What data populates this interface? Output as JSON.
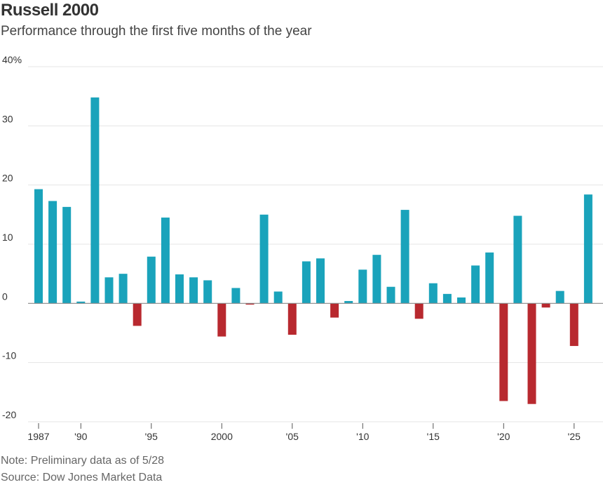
{
  "chart_data": {
    "type": "bar",
    "title": "Russell 2000",
    "subtitle": "Performance through the first five months of the year",
    "note": "Note: Preliminary data as of 5/28",
    "source": "Source: Dow Jones Market Data",
    "ylim": [
      -20,
      40
    ],
    "yticks": [
      {
        "value": 40,
        "label": "40%"
      },
      {
        "value": 30,
        "label": "30"
      },
      {
        "value": 20,
        "label": "20"
      },
      {
        "value": 10,
        "label": "10"
      },
      {
        "value": 0,
        "label": "0"
      },
      {
        "value": -10,
        "label": "-10"
      },
      {
        "value": -20,
        "label": "-20"
      }
    ],
    "xticks": [
      {
        "year": 1987,
        "label": "1987"
      },
      {
        "year": 1990,
        "label": "'90"
      },
      {
        "year": 1995,
        "label": "'95"
      },
      {
        "year": 2000,
        "label": "2000"
      },
      {
        "year": 2005,
        "label": "'05"
      },
      {
        "year": 2010,
        "label": "'10"
      },
      {
        "year": 2015,
        "label": "'15"
      },
      {
        "year": 2020,
        "label": "'20"
      },
      {
        "year": 2025,
        "label": "'25"
      }
    ],
    "categories": [
      1987,
      1988,
      1989,
      1990,
      1991,
      1992,
      1993,
      1994,
      1995,
      1996,
      1997,
      1998,
      1999,
      2000,
      2001,
      2002,
      2003,
      2004,
      2005,
      2006,
      2007,
      2008,
      2009,
      2010,
      2011,
      2012,
      2013,
      2014,
      2015,
      2016,
      2017,
      2018,
      2019,
      2020,
      2021,
      2022,
      2023,
      2024,
      2025,
      2026
    ],
    "values": [
      19.3,
      17.3,
      16.3,
      0.3,
      34.8,
      4.4,
      5.0,
      -3.8,
      7.9,
      14.5,
      4.9,
      4.4,
      3.9,
      -5.6,
      2.6,
      -0.2,
      15.0,
      2.0,
      -5.3,
      7.1,
      7.6,
      -2.4,
      0.4,
      5.7,
      8.2,
      2.8,
      15.8,
      -2.6,
      3.4,
      1.6,
      1.0,
      6.4,
      8.6,
      -16.5,
      14.8,
      -17.0,
      -0.7,
      2.1,
      -7.2,
      18.4
    ],
    "colors": {
      "positive": "#1aa3bb",
      "negative": "#b8292f",
      "grid": "#e4e4e4",
      "axis": "#888888"
    },
    "grid": true,
    "legend": "none"
  }
}
